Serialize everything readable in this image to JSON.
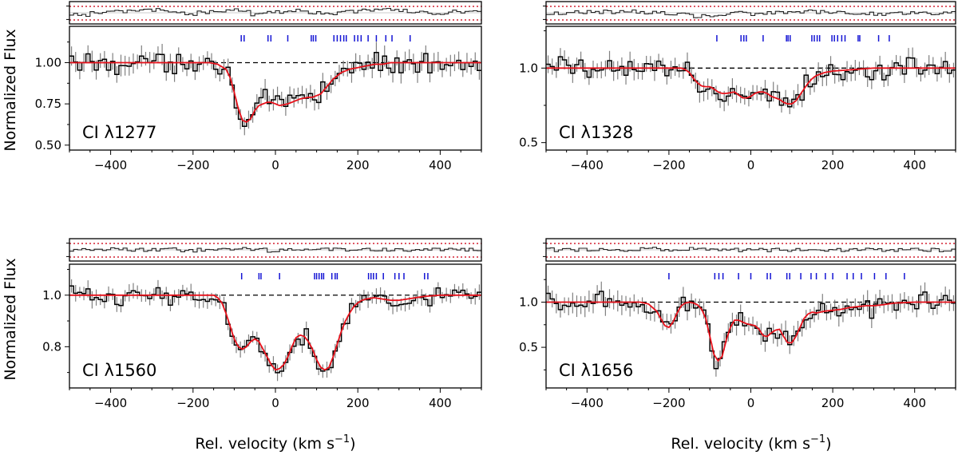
{
  "figure": {
    "ylabel": "Normalized Flux",
    "xlabel": "Rel. velocity  (km s",
    "xlabel_sup": "−1",
    "xlabel_close": ")"
  },
  "colors": {
    "data": "#000000",
    "errorbar": "#808080",
    "model": "#e8101a",
    "continuum": "#000000",
    "components": "#1414d4",
    "residual_limits": "#d42030"
  },
  "chart_data": [
    {
      "type": "line",
      "label": "CI λ1277",
      "xlim": [
        -500,
        500
      ],
      "ylim": [
        0.47,
        1.22
      ],
      "xticks": [
        -400,
        -200,
        0,
        200,
        400
      ],
      "yticks": [
        0.5,
        0.75,
        1.0
      ],
      "ytick_labels": [
        "0.50",
        "0.75",
        "1.00"
      ],
      "continuum": 1.0,
      "components_kms": [
        -83,
        -76,
        -18,
        -11,
        30,
        87,
        92,
        98,
        142,
        150,
        158,
        166,
        172,
        192,
        200,
        208,
        225,
        245,
        268,
        283,
        327
      ],
      "model": {
        "x": [
          -500,
          -160,
          -140,
          -120,
          -110,
          -100,
          -90,
          -80,
          -70,
          -60,
          -50,
          -40,
          -30,
          -20,
          -10,
          0,
          10,
          20,
          30,
          40,
          50,
          60,
          70,
          80,
          90,
          100,
          110,
          120,
          130,
          140,
          150,
          160,
          170,
          180,
          200,
          220,
          240,
          260,
          280,
          300,
          320,
          350,
          400,
          500
        ],
        "y": [
          1.0,
          1.0,
          0.99,
          0.96,
          0.91,
          0.82,
          0.72,
          0.65,
          0.64,
          0.66,
          0.71,
          0.74,
          0.75,
          0.76,
          0.76,
          0.75,
          0.74,
          0.745,
          0.75,
          0.76,
          0.77,
          0.78,
          0.785,
          0.79,
          0.79,
          0.8,
          0.81,
          0.84,
          0.87,
          0.9,
          0.92,
          0.94,
          0.95,
          0.96,
          0.97,
          0.98,
          0.99,
          0.99,
          1.0,
          1.0,
          1.0,
          1.0,
          1.0,
          1.0
        ]
      },
      "noise_amp": 0.055,
      "residual_spread": 0.32,
      "residual_bias": [
        -0.25,
        -0.05,
        0.1,
        0.25,
        0.35,
        0.15,
        -0.1,
        0.05,
        0.2,
        0.3,
        -0.2,
        0.1,
        0.25,
        0.0,
        -0.1,
        0.15,
        0.25,
        0.3,
        0.2,
        0.0,
        -0.2,
        0.1,
        0.2
      ]
    },
    {
      "type": "line",
      "label": "CI λ1328",
      "xlim": [
        -500,
        500
      ],
      "ylim": [
        0.45,
        1.28
      ],
      "xticks": [
        -400,
        -200,
        0,
        200,
        400
      ],
      "yticks": [
        0.5,
        1.0
      ],
      "ytick_labels": [
        "0.5",
        "1.0"
      ],
      "continuum": 1.0,
      "components_kms": [
        -83,
        -24,
        -17,
        -11,
        30,
        87,
        91,
        96,
        149,
        155,
        162,
        168,
        198,
        204,
        212,
        222,
        230,
        262,
        266,
        312,
        338
      ],
      "model": {
        "x": [
          -500,
          -170,
          -160,
          -150,
          -140,
          -130,
          -120,
          -110,
          -100,
          -90,
          -80,
          -70,
          -60,
          -50,
          -40,
          -30,
          -20,
          -10,
          0,
          10,
          20,
          30,
          40,
          50,
          60,
          70,
          80,
          90,
          100,
          110,
          120,
          130,
          140,
          150,
          160,
          180,
          200,
          250,
          300,
          350,
          400,
          500
        ],
        "y": [
          1.0,
          1.0,
          0.99,
          0.97,
          0.93,
          0.9,
          0.88,
          0.875,
          0.875,
          0.86,
          0.84,
          0.83,
          0.83,
          0.835,
          0.84,
          0.82,
          0.8,
          0.8,
          0.81,
          0.83,
          0.84,
          0.84,
          0.83,
          0.81,
          0.8,
          0.79,
          0.77,
          0.76,
          0.76,
          0.78,
          0.82,
          0.86,
          0.9,
          0.93,
          0.95,
          0.97,
          0.98,
          0.99,
          1.0,
          1.0,
          1.0,
          1.0
        ]
      },
      "noise_amp": 0.06,
      "residual_spread": 0.35,
      "residual_bias": [
        -0.1,
        0.0,
        0.1,
        0.1,
        0.1,
        0.05,
        -0.05,
        -0.2,
        -0.35,
        -0.3,
        -0.05,
        -0.1,
        0.0,
        0.0,
        0.1,
        0.05,
        0.0,
        -0.1,
        -0.1,
        -0.05,
        0.0,
        0.0,
        0.0
      ]
    },
    {
      "type": "line",
      "label": "CI λ1560",
      "xlim": [
        -500,
        500
      ],
      "ylim": [
        0.64,
        1.12
      ],
      "xticks": [
        -400,
        -200,
        0,
        200,
        400
      ],
      "yticks": [
        0.8,
        1.0
      ],
      "ytick_labels": [
        "0.8",
        "1.0"
      ],
      "continuum": 1.0,
      "components_kms": [
        -82,
        -40,
        -35,
        10,
        95,
        100,
        106,
        112,
        117,
        137,
        145,
        150,
        226,
        232,
        238,
        245,
        262,
        290,
        300,
        312,
        362,
        370
      ],
      "model": {
        "x": [
          -500,
          -150,
          -140,
          -130,
          -120,
          -110,
          -100,
          -90,
          -80,
          -70,
          -60,
          -50,
          -40,
          -30,
          -20,
          -10,
          0,
          10,
          20,
          30,
          40,
          50,
          60,
          70,
          80,
          90,
          100,
          110,
          120,
          130,
          140,
          150,
          160,
          170,
          180,
          190,
          200,
          210,
          220,
          240,
          260,
          280,
          300,
          320,
          340,
          360,
          400,
          500
        ],
        "y": [
          1.0,
          1.0,
          0.99,
          0.97,
          0.93,
          0.88,
          0.83,
          0.8,
          0.79,
          0.8,
          0.82,
          0.83,
          0.82,
          0.79,
          0.76,
          0.73,
          0.71,
          0.715,
          0.73,
          0.76,
          0.8,
          0.835,
          0.845,
          0.84,
          0.82,
          0.79,
          0.75,
          0.72,
          0.71,
          0.72,
          0.76,
          0.81,
          0.86,
          0.9,
          0.93,
          0.955,
          0.97,
          0.98,
          0.985,
          0.99,
          0.985,
          0.98,
          0.98,
          0.985,
          0.99,
          0.995,
          1.0,
          1.0
        ]
      },
      "noise_amp": 0.028,
      "residual_spread": 0.3,
      "residual_bias": [
        0.0,
        0.05,
        0.05,
        0.0,
        0.0,
        0.05,
        -0.1,
        0.0,
        0.0,
        0.1,
        0.0,
        -0.1,
        0.0,
        0.05,
        0.1,
        0.0,
        0.0,
        0.05,
        0.0,
        0.0,
        0.05,
        0.0,
        0.0
      ]
    },
    {
      "type": "line",
      "label": "CI λ1656",
      "xlim": [
        -500,
        500
      ],
      "ylim": [
        0.05,
        1.42
      ],
      "xticks": [
        -400,
        -200,
        0,
        200,
        400
      ],
      "yticks": [
        0.5,
        1.0
      ],
      "ytick_labels": [
        "0.5",
        "1.0"
      ],
      "continuum": 1.0,
      "components_kms": [
        -200,
        -88,
        -78,
        -68,
        -30,
        0,
        40,
        48,
        88,
        95,
        122,
        147,
        160,
        182,
        200,
        235,
        250,
        270,
        302,
        330,
        375
      ],
      "model": {
        "x": [
          -500,
          -270,
          -250,
          -230,
          -220,
          -210,
          -200,
          -190,
          -180,
          -170,
          -160,
          -150,
          -140,
          -130,
          -120,
          -110,
          -100,
          -90,
          -80,
          -70,
          -60,
          -50,
          -40,
          -30,
          -20,
          -10,
          0,
          10,
          20,
          30,
          40,
          50,
          60,
          70,
          80,
          90,
          100,
          110,
          120,
          130,
          140,
          150,
          160,
          180,
          200,
          220,
          240,
          260,
          280,
          300,
          320,
          350,
          400,
          500
        ],
        "y": [
          1.0,
          1.0,
          0.98,
          0.9,
          0.82,
          0.74,
          0.72,
          0.78,
          0.88,
          0.96,
          0.99,
          1.0,
          0.99,
          0.97,
          0.92,
          0.82,
          0.62,
          0.42,
          0.35,
          0.4,
          0.58,
          0.72,
          0.8,
          0.8,
          0.78,
          0.76,
          0.75,
          0.74,
          0.7,
          0.63,
          0.62,
          0.66,
          0.69,
          0.7,
          0.62,
          0.55,
          0.55,
          0.62,
          0.72,
          0.82,
          0.87,
          0.89,
          0.88,
          0.9,
          0.91,
          0.92,
          0.94,
          0.95,
          0.96,
          0.96,
          0.97,
          0.99,
          1.0,
          1.0
        ]
      },
      "noise_amp": 0.1,
      "residual_spread": 0.35,
      "residual_bias": [
        0.0,
        0.0,
        0.05,
        0.0,
        0.0,
        0.1,
        0.0,
        0.0,
        0.05,
        0.0,
        0.0,
        0.05,
        0.0,
        0.0,
        0.0,
        0.0,
        0.0,
        0.0,
        0.0,
        0.0,
        0.0,
        0.0,
        0.0
      ]
    }
  ]
}
